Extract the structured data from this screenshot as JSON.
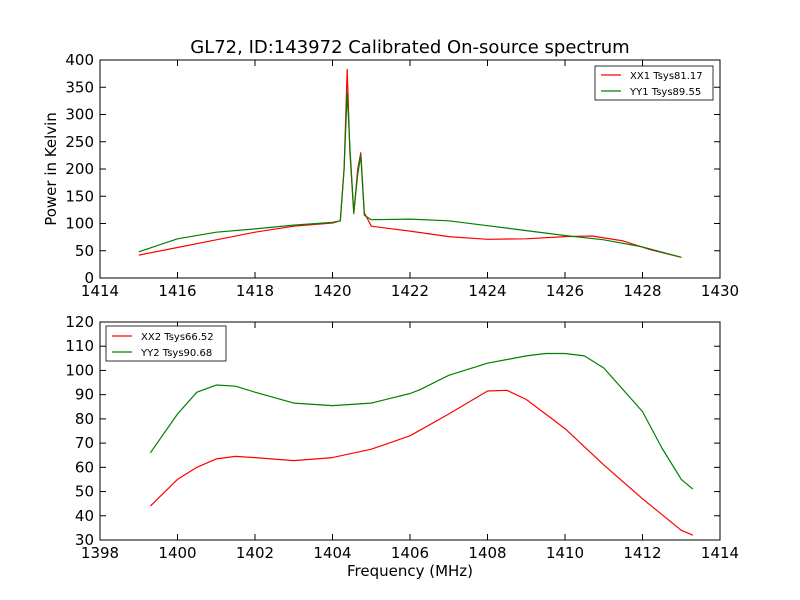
{
  "chart_data": [
    {
      "type": "line",
      "title": "GL72, ID:143972 Calibrated On-source spectrum",
      "xlabel": "",
      "ylabel": "Power in Kelvin",
      "xlim": [
        1414,
        1430
      ],
      "ylim": [
        0,
        400
      ],
      "xticks": [
        1414,
        1416,
        1418,
        1420,
        1422,
        1424,
        1426,
        1428,
        1430
      ],
      "yticks": [
        0,
        50,
        100,
        150,
        200,
        250,
        300,
        350,
        400
      ],
      "legend_position": "top-right",
      "series": [
        {
          "name": "XX1 Tsys81.17",
          "color": "#ff0000",
          "points": [
            [
              1415,
              42
            ],
            [
              1416,
              56
            ],
            [
              1417,
              70
            ],
            [
              1418,
              84
            ],
            [
              1419,
              95
            ],
            [
              1420,
              101
            ],
            [
              1420.2,
              105
            ],
            [
              1420.3,
              200
            ],
            [
              1420.38,
              383
            ],
            [
              1420.45,
              230
            ],
            [
              1420.55,
              118
            ],
            [
              1420.65,
              200
            ],
            [
              1420.73,
              230
            ],
            [
              1420.82,
              120
            ],
            [
              1421,
              95
            ],
            [
              1422,
              86
            ],
            [
              1423,
              76
            ],
            [
              1424,
              71
            ],
            [
              1425,
              72
            ],
            [
              1426,
              76
            ],
            [
              1426.7,
              77
            ],
            [
              1427.5,
              68
            ],
            [
              1428.2,
              52
            ],
            [
              1429,
              38
            ]
          ]
        },
        {
          "name": "YY1 Tsys89.55",
          "color": "#008000",
          "points": [
            [
              1415,
              48
            ],
            [
              1416,
              72
            ],
            [
              1417,
              84
            ],
            [
              1418,
              90
            ],
            [
              1419,
              97
            ],
            [
              1420,
              102
            ],
            [
              1420.2,
              105
            ],
            [
              1420.3,
              200
            ],
            [
              1420.38,
              340
            ],
            [
              1420.45,
              240
            ],
            [
              1420.55,
              120
            ],
            [
              1420.65,
              190
            ],
            [
              1420.73,
              225
            ],
            [
              1420.82,
              115
            ],
            [
              1421,
              107
            ],
            [
              1422,
              108
            ],
            [
              1423,
              105
            ],
            [
              1424,
              96
            ],
            [
              1425,
              87
            ],
            [
              1426,
              78
            ],
            [
              1427,
              70
            ],
            [
              1428,
              57
            ],
            [
              1429,
              38
            ]
          ]
        }
      ]
    },
    {
      "type": "line",
      "title": "",
      "xlabel": "Frequency (MHz)",
      "ylabel": "",
      "xlim": [
        1398,
        1414
      ],
      "ylim": [
        30,
        120
      ],
      "xticks": [
        1398,
        1400,
        1402,
        1404,
        1406,
        1408,
        1410,
        1412,
        1414
      ],
      "yticks": [
        30,
        40,
        50,
        60,
        70,
        80,
        90,
        100,
        110,
        120
      ],
      "legend_position": "top-left",
      "series": [
        {
          "name": "XX2 Tsys66.52",
          "color": "#ff0000",
          "points": [
            [
              1399.3,
              44
            ],
            [
              1400,
              55
            ],
            [
              1400.5,
              60
            ],
            [
              1401,
              63.5
            ],
            [
              1401.5,
              64.5
            ],
            [
              1402,
              64
            ],
            [
              1403,
              62.8
            ],
            [
              1404,
              64
            ],
            [
              1405,
              67.5
            ],
            [
              1406,
              73
            ],
            [
              1407,
              82
            ],
            [
              1408,
              91.5
            ],
            [
              1408.5,
              91.8
            ],
            [
              1409,
              88
            ],
            [
              1410,
              76
            ],
            [
              1411,
              61
            ],
            [
              1412,
              47
            ],
            [
              1413,
              34
            ],
            [
              1413.3,
              32
            ]
          ]
        },
        {
          "name": "YY2 Tsys90.68",
          "color": "#008000",
          "points": [
            [
              1399.3,
              66
            ],
            [
              1400,
              82
            ],
            [
              1400.5,
              91
            ],
            [
              1401,
              94
            ],
            [
              1401.5,
              93.5
            ],
            [
              1402,
              91
            ],
            [
              1403,
              86.5
            ],
            [
              1404,
              85.5
            ],
            [
              1405,
              86.5
            ],
            [
              1406,
              90.5
            ],
            [
              1406.25,
              92
            ],
            [
              1407,
              98
            ],
            [
              1408,
              103
            ],
            [
              1409,
              106
            ],
            [
              1409.5,
              107
            ],
            [
              1410,
              107
            ],
            [
              1410.5,
              106
            ],
            [
              1411,
              101
            ],
            [
              1412,
              83
            ],
            [
              1412.5,
              68
            ],
            [
              1413,
              55
            ],
            [
              1413.3,
              51
            ]
          ]
        }
      ]
    }
  ]
}
